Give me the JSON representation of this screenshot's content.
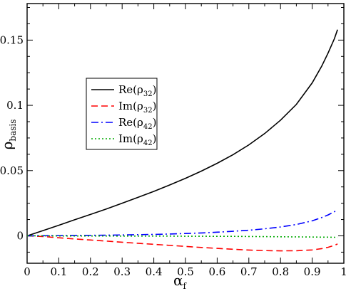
{
  "chart_data": {
    "type": "line",
    "title": "",
    "xlabel": {
      "main": "α",
      "sub": "f"
    },
    "ylabel": {
      "main": "ρ",
      "sub": "basis"
    },
    "xlim": [
      0,
      1
    ],
    "ylim": [
      -0.021,
      0.178
    ],
    "xticks": [
      0,
      0.1,
      0.2,
      0.3,
      0.4,
      0.5,
      0.6,
      0.7,
      0.8,
      0.9,
      1
    ],
    "xtick_labels": [
      "0",
      "0.1",
      "0.2",
      "0.3",
      "0.4",
      "0.5",
      "0.6",
      "0.7",
      "0.8",
      "0.9",
      "1"
    ],
    "yticks": [
      0,
      0.05,
      0.1,
      0.15
    ],
    "ytick_labels": [
      "0",
      "0.05",
      "0.1",
      "0.15"
    ],
    "grid": false,
    "legend_position": "upper-left",
    "series": [
      {
        "label": {
          "main": "Re(ρ",
          "sub": "32",
          "close": ")"
        },
        "color": "#000000",
        "dash": "solid",
        "x": [
          0,
          0.05,
          0.1,
          0.15,
          0.2,
          0.25,
          0.3,
          0.35,
          0.4,
          0.45,
          0.5,
          0.55,
          0.6,
          0.65,
          0.7,
          0.75,
          0.8,
          0.85,
          0.9,
          0.93,
          0.95,
          0.97,
          0.98
        ],
        "values": [
          0,
          0.004,
          0.0081,
          0.0123,
          0.0164,
          0.0206,
          0.025,
          0.0295,
          0.0341,
          0.039,
          0.0441,
          0.0496,
          0.0556,
          0.0622,
          0.0697,
          0.0784,
          0.0886,
          0.1007,
          0.1172,
          0.13,
          0.14,
          0.151,
          0.158
        ]
      },
      {
        "label": {
          "main": "Im(ρ",
          "sub": "32",
          "close": ")"
        },
        "color": "#ff0000",
        "dash": "dashed",
        "x": [
          0,
          0.05,
          0.1,
          0.15,
          0.2,
          0.25,
          0.3,
          0.35,
          0.4,
          0.45,
          0.5,
          0.55,
          0.6,
          0.65,
          0.7,
          0.75,
          0.8,
          0.85,
          0.9,
          0.93,
          0.95,
          0.97,
          0.98
        ],
        "values": [
          0,
          -0.0005,
          -0.0015,
          -0.0024,
          -0.0032,
          -0.004,
          -0.0049,
          -0.0057,
          -0.0065,
          -0.0073,
          -0.0081,
          -0.0089,
          -0.0096,
          -0.0103,
          -0.0109,
          -0.0113,
          -0.0115,
          -0.0114,
          -0.0108,
          -0.0098,
          -0.0088,
          -0.0073,
          -0.0062
        ]
      },
      {
        "label": {
          "main": "Re(ρ",
          "sub": "42",
          "close": ")"
        },
        "color": "#0000ff",
        "dash": "dashdot",
        "x": [
          0,
          0.05,
          0.1,
          0.15,
          0.2,
          0.25,
          0.3,
          0.35,
          0.4,
          0.45,
          0.5,
          0.55,
          0.6,
          0.65,
          0.7,
          0.75,
          0.8,
          0.85,
          0.9,
          0.93,
          0.95,
          0.97,
          0.98
        ],
        "values": [
          0,
          0.0001,
          0.0002,
          0.0003,
          0.0004,
          0.0005,
          0.0007,
          0.0009,
          0.0011,
          0.0014,
          0.0018,
          0.0022,
          0.0028,
          0.0035,
          0.0043,
          0.0054,
          0.0068,
          0.0087,
          0.0115,
          0.014,
          0.016,
          0.0185,
          0.02
        ]
      },
      {
        "label": {
          "main": "Im(ρ",
          "sub": "42",
          "close": ")"
        },
        "color": "#00aa00",
        "dash": "dotted",
        "x": [
          0,
          0.05,
          0.1,
          0.15,
          0.2,
          0.25,
          0.3,
          0.35,
          0.4,
          0.45,
          0.5,
          0.55,
          0.6,
          0.65,
          0.7,
          0.75,
          0.8,
          0.85,
          0.9,
          0.93,
          0.95,
          0.97,
          0.98
        ],
        "values": [
          0,
          0,
          -0.0001,
          -0.0001,
          -0.0001,
          -0.0001,
          -0.0002,
          -0.0002,
          -0.0002,
          -0.0002,
          -0.0003,
          -0.0003,
          -0.0004,
          -0.0004,
          -0.0005,
          -0.0006,
          -0.0007,
          -0.0008,
          -0.0009,
          -0.001,
          -0.001,
          -0.0011,
          -0.0011
        ]
      }
    ]
  }
}
